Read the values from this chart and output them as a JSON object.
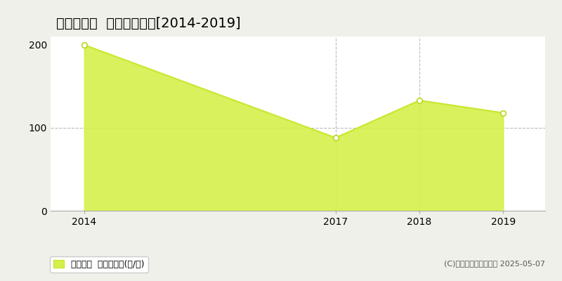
{
  "title": "新城市名越  林地価格推移[2014-2019]",
  "years": [
    2014,
    2017,
    2018,
    2019
  ],
  "values": [
    200,
    88,
    133,
    118
  ],
  "line_color": "#c8e832",
  "fill_color": "#d4f04a",
  "fill_alpha": 0.9,
  "marker_color": "#ffffff",
  "marker_edge_color": "#b8d820",
  "ylim": [
    0,
    210
  ],
  "yticks": [
    0,
    100,
    200
  ],
  "xlim": [
    2013.6,
    2019.5
  ],
  "xticks": [
    2014,
    2017,
    2018,
    2019
  ],
  "vgrid_years": [
    2017,
    2018
  ],
  "hgrid_values": [
    100
  ],
  "bg_color": "#f0f0ea",
  "plot_bg_color": "#ffffff",
  "legend_label": "林地価格  平均坪単価(円/坪)",
  "copyright_text": "(C)土地価格ドットコム 2025-05-07",
  "title_fontsize": 14,
  "axis_fontsize": 10,
  "legend_fontsize": 9,
  "copyright_fontsize": 8
}
